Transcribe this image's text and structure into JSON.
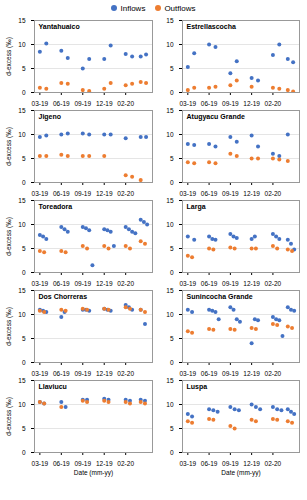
{
  "chart_data": [
    {
      "type": "scatter",
      "title": "Yantahuaico",
      "y_label": "d-excess (‰)",
      "legend": "top",
      "grid": true,
      "xlim": [
        -0.25,
        5.25
      ],
      "xticks": [
        {
          "value": 0,
          "label": "03-19"
        },
        {
          "value": 1,
          "label": "06-19"
        },
        {
          "value": 2,
          "label": "09-19"
        },
        {
          "value": 3,
          "label": "12-19"
        },
        {
          "value": 4,
          "label": "02-20"
        }
      ],
      "ylim": [
        0,
        15
      ],
      "yticks": [
        0,
        5,
        10,
        15
      ],
      "series": [
        {
          "name": "Inflows",
          "color": "#4472C4",
          "x": [
            0,
            0.3,
            1,
            1.3,
            2,
            2.3,
            3,
            3.3,
            4,
            4.3,
            4.7,
            4.95
          ],
          "values": [
            8.5,
            10.2,
            8.7,
            7.2,
            5.0,
            7.0,
            7.0,
            9.8,
            8.0,
            7.5,
            7.5,
            7.9
          ]
        },
        {
          "name": "Outflows",
          "color": "#ED7D31",
          "x": [
            0,
            0.3,
            1,
            1.3,
            2,
            2.3,
            3,
            3.3,
            4,
            4.3,
            4.7,
            4.95
          ],
          "values": [
            1.0,
            0.8,
            2.0,
            1.8,
            0.5,
            0.3,
            0.8,
            2.0,
            1.5,
            1.8,
            2.2,
            2.0
          ]
        }
      ]
    },
    {
      "type": "scatter",
      "title": "Estrellascocha",
      "grid": true,
      "xlim": [
        -0.25,
        5.25
      ],
      "xticks": [
        {
          "value": 0,
          "label": "03-19"
        },
        {
          "value": 1,
          "label": "06-19"
        },
        {
          "value": 2,
          "label": "09-19"
        },
        {
          "value": 3,
          "label": "12-19"
        },
        {
          "value": 4,
          "label": "02-20"
        }
      ],
      "ylim": [
        0,
        15
      ],
      "yticks": [
        0,
        5,
        10,
        15
      ],
      "series": [
        {
          "name": "Inflows",
          "color": "#4472C4",
          "x": [
            0,
            0.3,
            1,
            1.3,
            2,
            2.3,
            3,
            3.3,
            4,
            4.3,
            4.7,
            4.95
          ],
          "values": [
            5.3,
            8.2,
            10.0,
            9.5,
            4.0,
            6.5,
            3.0,
            2.5,
            7.8,
            10.0,
            7.0,
            6.3
          ]
        },
        {
          "name": "Outflows",
          "color": "#ED7D31",
          "x": [
            0,
            0.3,
            1,
            1.3,
            2,
            2.3,
            3,
            4,
            4.3,
            4.7,
            4.95
          ],
          "values": [
            0.5,
            1.0,
            1.0,
            1.2,
            1.5,
            2.5,
            1.2,
            1.0,
            0.8,
            0.5,
            0.2
          ]
        }
      ]
    },
    {
      "type": "scatter",
      "title": "Jigeno",
      "y_label": "d-excess (‰)",
      "grid": true,
      "xlim": [
        -0.25,
        5.25
      ],
      "xticks": [
        {
          "value": 0,
          "label": "03-19"
        },
        {
          "value": 1,
          "label": "06-19"
        },
        {
          "value": 2,
          "label": "09-19"
        },
        {
          "value": 3,
          "label": "12-19"
        },
        {
          "value": 4,
          "label": "02-20"
        }
      ],
      "ylim": [
        0,
        15
      ],
      "yticks": [
        0,
        5,
        10,
        15
      ],
      "series": [
        {
          "name": "Inflows",
          "color": "#4472C4",
          "x": [
            0,
            0.3,
            1,
            1.3,
            2,
            2.3,
            3,
            3.3,
            4,
            4.7,
            4.95
          ],
          "values": [
            9.5,
            9.8,
            10.0,
            10.2,
            10.2,
            10.0,
            10.0,
            10.0,
            9.2,
            9.5,
            9.5
          ]
        },
        {
          "name": "Outflows",
          "color": "#ED7D31",
          "x": [
            0,
            0.3,
            1,
            1.3,
            2,
            2.3,
            3,
            4,
            4.3,
            4.7
          ],
          "values": [
            5.5,
            5.5,
            5.8,
            5.5,
            5.5,
            5.5,
            5.5,
            1.5,
            1.2,
            0.5
          ]
        }
      ]
    },
    {
      "type": "scatter",
      "title": "Atugyacu Grande",
      "grid": true,
      "xlim": [
        -0.25,
        5.25
      ],
      "xticks": [
        {
          "value": 0,
          "label": "03-19"
        },
        {
          "value": 1,
          "label": "06-19"
        },
        {
          "value": 2,
          "label": "09-19"
        },
        {
          "value": 3,
          "label": "12-19"
        },
        {
          "value": 4,
          "label": "02-20"
        }
      ],
      "ylim": [
        0,
        15
      ],
      "yticks": [
        0,
        5,
        10,
        15
      ],
      "series": [
        {
          "name": "Inflows",
          "color": "#4472C4",
          "x": [
            0,
            0.3,
            1,
            1.3,
            2,
            2.3,
            3,
            3.3,
            4,
            4.3,
            4.7
          ],
          "values": [
            8.0,
            7.8,
            8.0,
            7.5,
            9.5,
            8.5,
            9.8,
            7.5,
            6.0,
            5.5,
            10.0
          ]
        },
        {
          "name": "Outflows",
          "color": "#ED7D31",
          "x": [
            0,
            0.3,
            1,
            1.3,
            2,
            2.3,
            3,
            3.3,
            4,
            4.3,
            4.7
          ],
          "values": [
            4.2,
            4.0,
            4.2,
            4.0,
            6.0,
            5.5,
            5.0,
            5.0,
            5.0,
            4.8,
            4.5
          ]
        }
      ]
    },
    {
      "type": "scatter",
      "title": "Toreadora",
      "y_label": "d-excess (‰)",
      "grid": true,
      "xlim": [
        -0.25,
        5.25
      ],
      "xticks": [
        {
          "value": 0,
          "label": "03-19"
        },
        {
          "value": 1,
          "label": "06-19"
        },
        {
          "value": 2,
          "label": "09-19"
        },
        {
          "value": 3,
          "label": "12-19"
        },
        {
          "value": 4,
          "label": "02-20"
        }
      ],
      "ylim": [
        0,
        15
      ],
      "yticks": [
        0,
        5,
        10,
        15
      ],
      "series": [
        {
          "name": "Inflows",
          "color": "#4472C4",
          "x": [
            0,
            0.15,
            0.3,
            1,
            1.15,
            1.3,
            2,
            2.15,
            2.3,
            2.45,
            3,
            3.15,
            3.3,
            3.45,
            4,
            4.15,
            4.3,
            4.45,
            4.7,
            4.85,
            5.0
          ],
          "values": [
            7.8,
            7.5,
            7.0,
            9.5,
            9.0,
            8.5,
            9.5,
            9.2,
            8.8,
            1.5,
            9.0,
            8.8,
            8.5,
            5.5,
            9.5,
            9.0,
            8.5,
            8.2,
            11.0,
            10.5,
            10.0
          ]
        },
        {
          "name": "Outflows",
          "color": "#ED7D31",
          "x": [
            0,
            0.2,
            1,
            1.2,
            2,
            2.2,
            3,
            3.2,
            4,
            4.2,
            4.7,
            4.9
          ],
          "values": [
            4.5,
            4.2,
            4.5,
            4.2,
            5.5,
            5.0,
            5.5,
            5.0,
            5.5,
            5.0,
            6.5,
            6.0
          ]
        }
      ]
    },
    {
      "type": "scatter",
      "title": "Larga",
      "grid": true,
      "xlim": [
        -0.25,
        5.25
      ],
      "xticks": [
        {
          "value": 0,
          "label": "03-19"
        },
        {
          "value": 1,
          "label": "06-19"
        },
        {
          "value": 2,
          "label": "09-19"
        },
        {
          "value": 3,
          "label": "12-19"
        },
        {
          "value": 4,
          "label": "02-20"
        }
      ],
      "ylim": [
        0,
        15
      ],
      "yticks": [
        0,
        5,
        10,
        15
      ],
      "series": [
        {
          "name": "Inflows",
          "color": "#4472C4",
          "x": [
            0,
            0.3,
            1,
            1.15,
            1.3,
            2,
            2.15,
            2.3,
            3,
            3.15,
            4,
            4.15,
            4.3,
            4.7,
            4.85,
            5.0
          ],
          "values": [
            7.5,
            6.8,
            7.5,
            7.0,
            6.8,
            8.0,
            7.5,
            7.2,
            7.0,
            7.5,
            8.0,
            7.5,
            7.0,
            6.8,
            6.0,
            4.8
          ]
        },
        {
          "name": "Outflows",
          "color": "#ED7D31",
          "x": [
            0,
            0.2,
            1,
            1.2,
            2,
            2.2,
            3,
            3.2,
            4,
            4.2,
            4.7,
            4.9
          ],
          "values": [
            3.5,
            3.2,
            5.0,
            4.8,
            5.2,
            5.0,
            5.0,
            5.0,
            5.5,
            5.0,
            4.8,
            4.5
          ]
        }
      ]
    },
    {
      "type": "scatter",
      "title": "Dos Chorreras",
      "y_label": "d-excess (‰)",
      "grid": true,
      "xlim": [
        -0.25,
        5.25
      ],
      "xticks": [
        {
          "value": 0,
          "label": "03-19"
        },
        {
          "value": 1,
          "label": "06-19"
        },
        {
          "value": 2,
          "label": "09-19"
        },
        {
          "value": 3,
          "label": "12-19"
        },
        {
          "value": 4,
          "label": "02-20"
        }
      ],
      "ylim": [
        0,
        15
      ],
      "yticks": [
        0,
        5,
        10,
        15
      ],
      "series": [
        {
          "name": "Inflows",
          "color": "#4472C4",
          "x": [
            0,
            0.15,
            0.3,
            1,
            1.15,
            2,
            2.15,
            2.3,
            3,
            3.15,
            3.3,
            4,
            4.15,
            4.3,
            4.7,
            4.9
          ],
          "values": [
            11.0,
            10.8,
            10.5,
            9.5,
            10.5,
            11.0,
            11.0,
            10.8,
            11.2,
            11.0,
            10.8,
            12.0,
            11.5,
            11.0,
            11.0,
            8.0
          ]
        },
        {
          "name": "Outflows",
          "color": "#ED7D31",
          "x": [
            0,
            0.2,
            1,
            1.2,
            2,
            2.2,
            3,
            3.2,
            4,
            4.2,
            4.7,
            4.9
          ],
          "values": [
            10.8,
            10.5,
            11.0,
            10.8,
            11.2,
            11.0,
            11.2,
            11.0,
            11.5,
            11.2,
            11.0,
            10.5
          ]
        }
      ]
    },
    {
      "type": "scatter",
      "title": "Sunincocha Grande",
      "grid": true,
      "xlim": [
        -0.25,
        5.25
      ],
      "xticks": [
        {
          "value": 0,
          "label": "03-19"
        },
        {
          "value": 1,
          "label": "06-19"
        },
        {
          "value": 2,
          "label": "09-19"
        },
        {
          "value": 3,
          "label": "12-19"
        },
        {
          "value": 4,
          "label": "02-20"
        }
      ],
      "ylim": [
        0,
        15
      ],
      "yticks": [
        0,
        5,
        10,
        15
      ],
      "series": [
        {
          "name": "Inflows",
          "color": "#4472C4",
          "x": [
            0,
            0.2,
            1,
            1.15,
            1.3,
            1.45,
            2,
            2.15,
            2.3,
            2.45,
            3,
            3.15,
            3.3,
            4,
            4.15,
            4.3,
            4.45,
            4.7,
            4.85,
            5.0
          ],
          "values": [
            11.0,
            10.5,
            11.0,
            10.8,
            10.5,
            9.0,
            11.5,
            11.0,
            9.0,
            8.5,
            4.0,
            9.0,
            8.8,
            9.5,
            9.0,
            8.8,
            5.5,
            11.5,
            11.0,
            10.8
          ]
        },
        {
          "name": "Outflows",
          "color": "#ED7D31",
          "x": [
            0,
            0.2,
            1,
            1.2,
            2,
            2.2,
            3,
            3.2,
            4,
            4.2,
            4.7,
            4.9
          ],
          "values": [
            6.5,
            6.2,
            7.0,
            6.8,
            7.0,
            6.8,
            7.2,
            7.0,
            8.0,
            7.8,
            7.5,
            7.2
          ]
        }
      ]
    },
    {
      "type": "scatter",
      "title": "Llaviucu",
      "y_label": "d-excess (‰)",
      "x_label": "Date (mm-yy)",
      "grid": true,
      "xlim": [
        -0.25,
        5.25
      ],
      "xticks": [
        {
          "value": 0,
          "label": "03-19"
        },
        {
          "value": 1,
          "label": "06-19"
        },
        {
          "value": 2,
          "label": "09-19"
        },
        {
          "value": 3,
          "label": "12-19"
        },
        {
          "value": 4,
          "label": "02-20"
        }
      ],
      "ylim": [
        0,
        15
      ],
      "yticks": [
        0,
        5,
        10,
        15
      ],
      "series": [
        {
          "name": "Inflows",
          "color": "#4472C4",
          "x": [
            0,
            0.2,
            1,
            1.2,
            2,
            2.2,
            3,
            3.2,
            4,
            4.2,
            4.7,
            4.9
          ],
          "values": [
            10.5,
            10.2,
            10.5,
            9.5,
            11.0,
            11.0,
            11.2,
            11.0,
            11.0,
            10.8,
            11.0,
            10.8
          ]
        },
        {
          "name": "Outflows",
          "color": "#ED7D31",
          "x": [
            0,
            0.2,
            1,
            2,
            2.2,
            3,
            3.2,
            4,
            4.2,
            4.7,
            4.9
          ],
          "values": [
            10.5,
            10.2,
            9.5,
            10.8,
            10.5,
            10.8,
            10.5,
            10.5,
            10.2,
            10.5,
            10.2
          ]
        }
      ]
    },
    {
      "type": "scatter",
      "title": "Luspa",
      "x_label": "Date (mm-yy)",
      "grid": true,
      "xlim": [
        -0.25,
        5.25
      ],
      "xticks": [
        {
          "value": 0,
          "label": "03-19"
        },
        {
          "value": 1,
          "label": "06-19"
        },
        {
          "value": 2,
          "label": "09-19"
        },
        {
          "value": 3,
          "label": "12-19"
        },
        {
          "value": 4,
          "label": "02-20"
        }
      ],
      "ylim": [
        0,
        15
      ],
      "yticks": [
        0,
        5,
        10,
        15
      ],
      "series": [
        {
          "name": "Inflows",
          "color": "#4472C4",
          "x": [
            0,
            0.2,
            1,
            1.2,
            1.4,
            2,
            2.2,
            2.4,
            3,
            3.2,
            3.4,
            4,
            4.2,
            4.4,
            4.7,
            4.85,
            5.0
          ],
          "values": [
            8.0,
            7.5,
            9.0,
            8.8,
            8.5,
            9.5,
            9.0,
            8.8,
            10.0,
            9.5,
            9.0,
            9.5,
            9.0,
            8.8,
            9.0,
            8.5,
            8.0
          ]
        },
        {
          "name": "Outflows",
          "color": "#ED7D31",
          "x": [
            0,
            0.2,
            1,
            1.2,
            2,
            2.2,
            3,
            3.2,
            4,
            4.2,
            4.7,
            4.9
          ],
          "values": [
            6.5,
            6.2,
            7.0,
            6.8,
            5.5,
            5.0,
            6.8,
            6.5,
            7.0,
            6.8,
            6.5,
            6.2
          ]
        }
      ]
    }
  ]
}
